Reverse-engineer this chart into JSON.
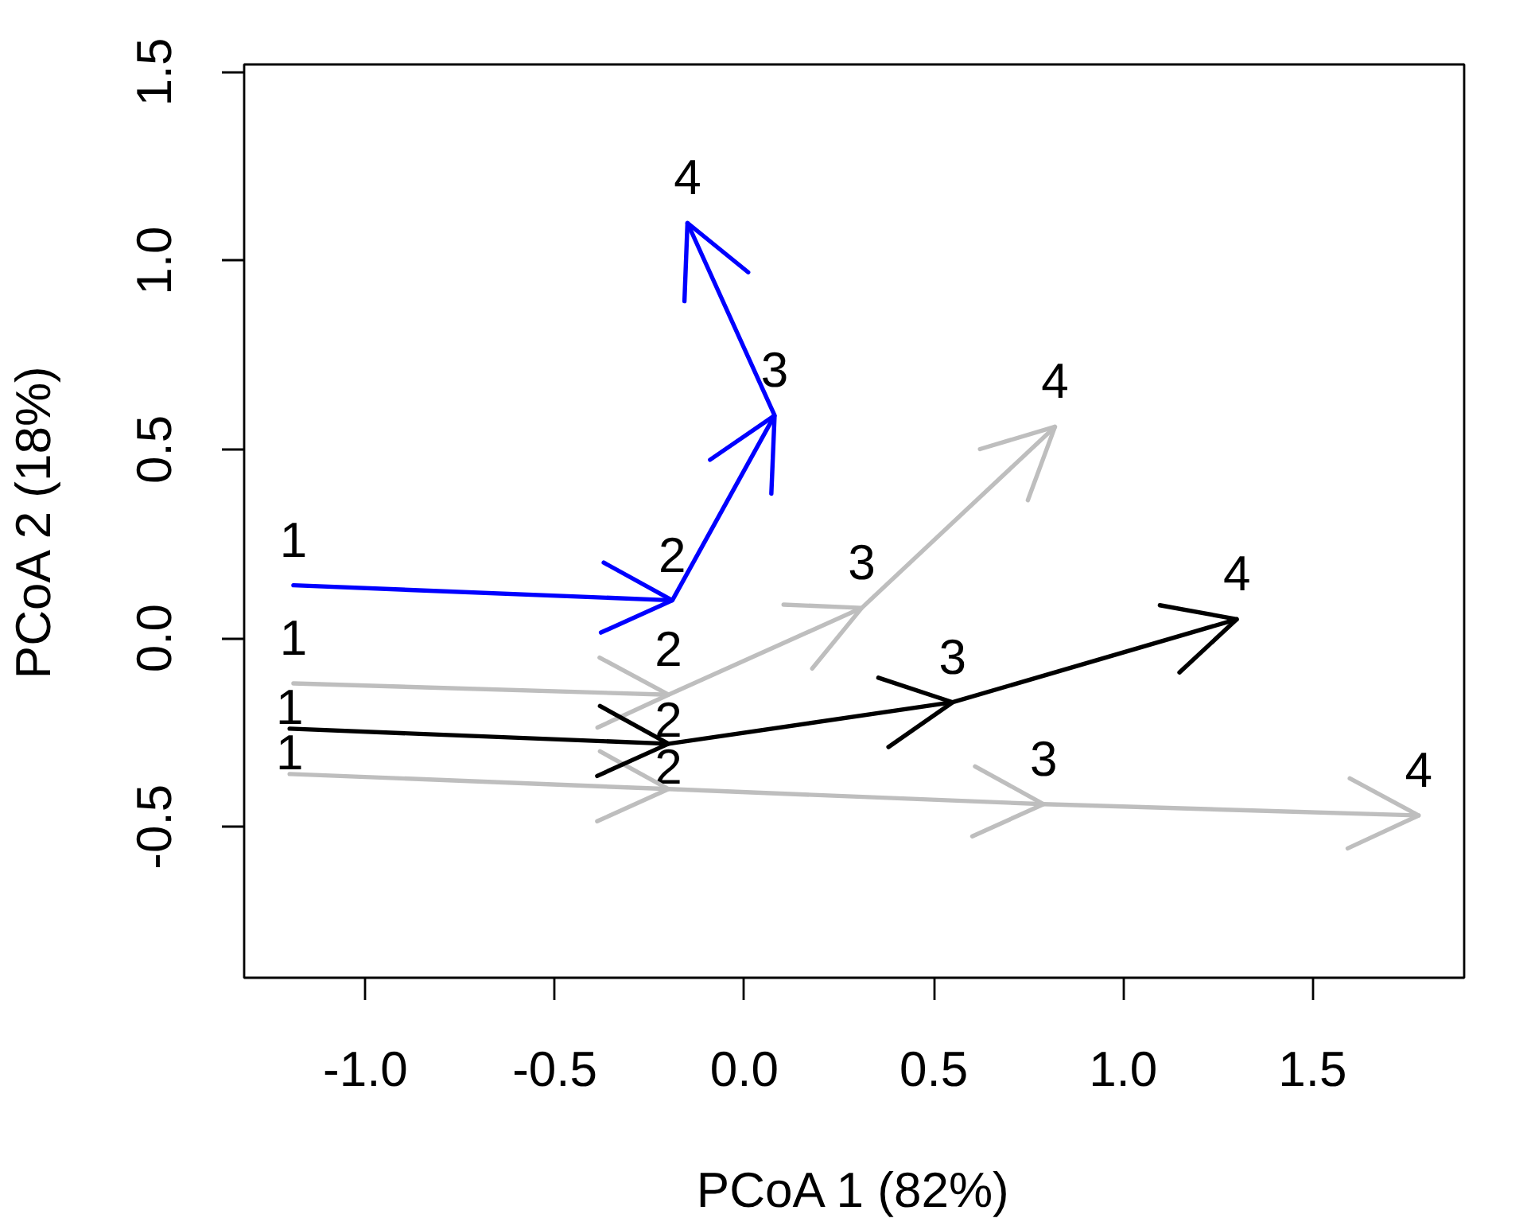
{
  "chart_data": {
    "type": "line",
    "xlabel": "PCoA 1 (82%)",
    "ylabel": "PCoA 2 (18%)",
    "xlim": [
      -1.32,
      1.9
    ],
    "ylim": [
      -0.9,
      1.52
    ],
    "xticks": [
      {
        "value": -1,
        "label": "-1.0"
      },
      -0.5,
      {
        "value": 0,
        "label": "0.0"
      },
      0.5,
      {
        "value": 1,
        "label": "1.0"
      },
      1.5
    ],
    "yticks": [
      -0.5,
      {
        "value": 0,
        "label": "0.0"
      },
      0.5,
      {
        "value": 1,
        "label": "1.0"
      },
      1.5
    ],
    "grid": false,
    "line_style": "solid",
    "series": [
      {
        "color": "#bebebe",
        "x": [
          -1.19,
          -0.2,
          0.31,
          0.82
        ],
        "values": [
          -0.12,
          -0.15,
          0.08,
          0.56
        ]
      },
      {
        "color": "#bebebe",
        "x": [
          -1.2,
          -0.2,
          0.79,
          1.78
        ],
        "values": [
          -0.36,
          -0.4,
          -0.44,
          -0.47
        ]
      },
      {
        "color": "#000000",
        "x": [
          -1.2,
          -0.2,
          0.55,
          1.3
        ],
        "values": [
          -0.24,
          -0.28,
          -0.17,
          0.05
        ]
      },
      {
        "color": "#0000ff",
        "x": [
          -1.19,
          -0.19,
          0.08,
          -0.15
        ],
        "values": [
          0.14,
          0.1,
          0.59,
          1.1
        ]
      }
    ],
    "annotations": [
      {
        "text": "1",
        "x": -1.19,
        "y": -0.12
      },
      {
        "text": "2",
        "x": -0.2,
        "y": -0.15
      },
      {
        "text": "3",
        "x": 0.31,
        "y": 0.08
      },
      {
        "text": "4",
        "x": 0.82,
        "y": 0.56
      },
      {
        "text": "1",
        "x": -1.2,
        "y": -0.36
      },
      {
        "text": "2",
        "x": -0.2,
        "y": -0.4
      },
      {
        "text": "3",
        "x": 0.79,
        "y": -0.44
      },
      {
        "text": "4",
        "x": 1.78,
        "y": -0.47
      },
      {
        "text": "1",
        "x": -1.2,
        "y": -0.24
      },
      {
        "text": "2",
        "x": -0.2,
        "y": -0.28
      },
      {
        "text": "3",
        "x": 0.55,
        "y": -0.17
      },
      {
        "text": "4",
        "x": 1.3,
        "y": 0.05
      },
      {
        "text": "1",
        "x": -1.19,
        "y": 0.14
      },
      {
        "text": "2",
        "x": -0.19,
        "y": 0.1
      },
      {
        "text": "3",
        "x": 0.08,
        "y": 0.59
      },
      {
        "text": "4",
        "x": -0.15,
        "y": 1.1
      }
    ]
  }
}
